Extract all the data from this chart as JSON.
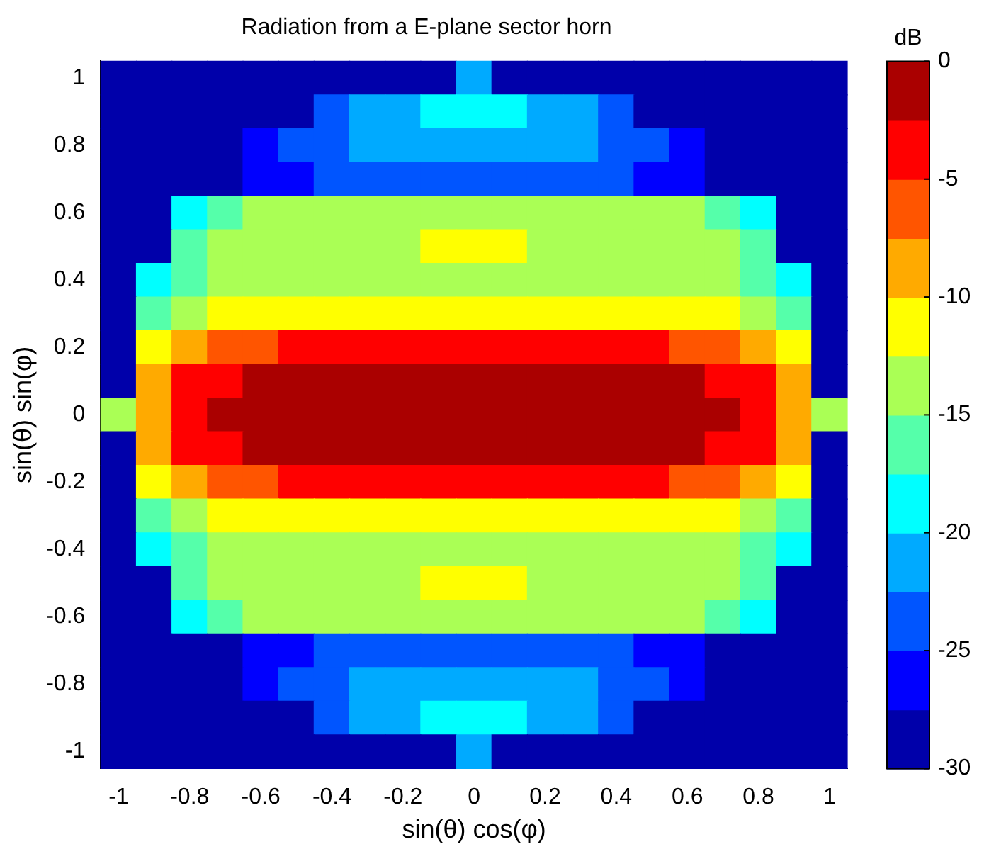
{
  "chart_data": {
    "type": "heatmap",
    "title": "Radiation from a E-plane sector horn",
    "xlabel": "sin(θ) cos(φ)",
    "ylabel": "sin(θ) sin(φ)",
    "clabel": "dB",
    "categories": [
      "-1",
      null,
      "-0.8",
      null,
      "-0.6",
      null,
      "-0.4",
      null,
      "-0.2",
      null,
      "0",
      null,
      "0.2",
      null,
      "0.4",
      null,
      "0.6",
      null,
      "0.8",
      null,
      "1"
    ],
    "y_categories": [
      "1",
      null,
      "0.8",
      null,
      "0.6",
      null,
      "0.4",
      null,
      "0.2",
      null,
      "0",
      null,
      "-0.2",
      null,
      "-0.4",
      null,
      "-0.6",
      null,
      "-0.8",
      null,
      "-1"
    ],
    "clim": [
      -30,
      0
    ],
    "cticks": [
      -30,
      -25,
      -20,
      -15,
      -10,
      -5,
      0
    ],
    "colors": [
      "#0000aa",
      "#0000ff",
      "#0055ff",
      "#00aaff",
      "#00ffff",
      "#55ffaa",
      "#aaff55",
      "#ffff00",
      "#ffaa00",
      "#ff5500",
      "#ff0000",
      "#aa0000"
    ],
    "cells": [
      [
        -30,
        -30,
        -30,
        -30,
        -30,
        -30,
        -30,
        -30,
        -30,
        -30,
        -21,
        -30,
        -30,
        -30,
        -30,
        -30,
        -30,
        -30,
        -30,
        -30,
        -30
      ],
      [
        -30,
        -30,
        -30,
        -30,
        -30,
        -30,
        -24,
        -22,
        -21,
        -19,
        -18.5,
        -19,
        -21,
        -22,
        -24,
        -30,
        -30,
        -30,
        -30,
        -30,
        -30
      ],
      [
        -30,
        -30,
        -30,
        -30,
        -26,
        -24,
        -23,
        -22,
        -21.5,
        -21,
        -21,
        -21,
        -21.5,
        -22,
        -23,
        -24,
        -26,
        -30,
        -30,
        -30,
        -30
      ],
      [
        -30,
        -30,
        -30,
        -28.5,
        -27,
        -26,
        -25,
        -25,
        -25,
        -25,
        -25,
        -25,
        -25,
        -25,
        -25,
        -26,
        -27,
        -28.5,
        -30,
        -30,
        -30
      ],
      [
        -30,
        -30,
        -18,
        -16,
        -14.5,
        -14,
        -14,
        -14,
        -14,
        -13.5,
        -13.5,
        -13.5,
        -14,
        -14,
        -14,
        -14,
        -14.5,
        -16,
        -18,
        -30,
        -30
      ],
      [
        -30,
        -30,
        -16,
        -14,
        -14,
        -13.5,
        -13.5,
        -13,
        -13,
        -11.5,
        -11,
        -11.5,
        -13,
        -13,
        -13.5,
        -13.5,
        -14,
        -14,
        -16,
        -30,
        -30
      ],
      [
        -30,
        -19,
        -16,
        -15,
        -14,
        -14,
        -13.5,
        -13.5,
        -13.5,
        -13.5,
        -13.5,
        -13.5,
        -13.5,
        -13.5,
        -13.5,
        -14,
        -14,
        -15,
        -16,
        -19,
        -30
      ],
      [
        -30,
        -16,
        -13,
        -12,
        -11.5,
        -11,
        -11,
        -11,
        -11,
        -11,
        -11,
        -11,
        -11,
        -11,
        -11,
        -11,
        -11.5,
        -12,
        -13,
        -16,
        -30
      ],
      [
        -30,
        -11,
        -8,
        -6,
        -5.5,
        -5,
        -5,
        -5,
        -5,
        -5,
        -5,
        -5,
        -5,
        -5,
        -5,
        -5,
        -5.5,
        -6,
        -8,
        -11,
        -30
      ],
      [
        -30,
        -9,
        -5,
        -3,
        -2,
        -1.5,
        -1.5,
        -1.5,
        -1.5,
        -1.5,
        -1.5,
        -1.5,
        -1.5,
        -1.5,
        -1.5,
        -1.5,
        -2,
        -3,
        -5,
        -9,
        -30
      ],
      [
        -14,
        -8,
        -4,
        -1.5,
        -1,
        -1,
        -1,
        -1,
        -1,
        -1,
        -1,
        -1,
        -1,
        -1,
        -1,
        -1,
        -1,
        -1.5,
        -4,
        -8,
        -14
      ],
      [
        -30,
        -9,
        -5,
        -3,
        -2,
        -1.5,
        -1.5,
        -1.5,
        -1.5,
        -1.5,
        -1.5,
        -1.5,
        -1.5,
        -1.5,
        -1.5,
        -1.5,
        -2,
        -3,
        -5,
        -9,
        -30
      ],
      [
        -30,
        -11,
        -8,
        -6,
        -5.5,
        -5,
        -5,
        -5,
        -5,
        -5,
        -5,
        -5,
        -5,
        -5,
        -5,
        -5,
        -5.5,
        -6,
        -8,
        -11,
        -30
      ],
      [
        -30,
        -16,
        -13,
        -12,
        -11.5,
        -11,
        -11,
        -11,
        -11,
        -11,
        -11,
        -11,
        -11,
        -11,
        -11,
        -11,
        -11.5,
        -12,
        -13,
        -16,
        -30
      ],
      [
        -30,
        -19,
        -16,
        -15,
        -14,
        -14,
        -13.5,
        -13.5,
        -13.5,
        -13.5,
        -13.5,
        -13.5,
        -13.5,
        -13.5,
        -13.5,
        -14,
        -14,
        -15,
        -16,
        -19,
        -30
      ],
      [
        -30,
        -30,
        -16,
        -14,
        -14,
        -13.5,
        -13.5,
        -13,
        -13,
        -11.5,
        -11,
        -11.5,
        -13,
        -13,
        -13.5,
        -13.5,
        -14,
        -14,
        -16,
        -30,
        -30
      ],
      [
        -30,
        -30,
        -18,
        -16,
        -14.5,
        -14,
        -14,
        -14,
        -14,
        -13.5,
        -13.5,
        -13.5,
        -14,
        -14,
        -14,
        -14,
        -14.5,
        -16,
        -18,
        -30,
        -30
      ],
      [
        -30,
        -30,
        -30,
        -28.5,
        -27,
        -26,
        -25,
        -25,
        -25,
        -25,
        -25,
        -25,
        -25,
        -25,
        -25,
        -26,
        -27,
        -28.5,
        -30,
        -30,
        -30
      ],
      [
        -30,
        -30,
        -30,
        -30,
        -26,
        -24,
        -23,
        -22,
        -21.5,
        -21,
        -21,
        -21,
        -21.5,
        -22,
        -23,
        -24,
        -26,
        -30,
        -30,
        -30,
        -30
      ],
      [
        -30,
        -30,
        -30,
        -30,
        -30,
        -30,
        -24,
        -22,
        -21,
        -19,
        -18.5,
        -19,
        -21,
        -22,
        -24,
        -30,
        -30,
        -30,
        -30,
        -30,
        -30
      ],
      [
        -30,
        -30,
        -30,
        -30,
        -30,
        -30,
        -30,
        -30,
        -30,
        -30,
        -21,
        -30,
        -30,
        -30,
        -30,
        -30,
        -30,
        -30,
        -30,
        -30,
        -30
      ]
    ]
  }
}
